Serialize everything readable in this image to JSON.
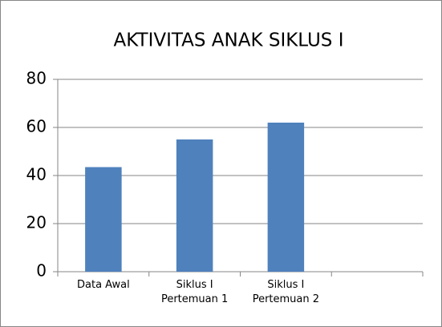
{
  "chart_data": {
    "type": "bar",
    "title": "AKTIVITAS ANAK SIKLUS I",
    "categories": [
      "Data Awal",
      "Siklus I Pertemuan 1",
      "Siklus I Pertemuan 2",
      null
    ],
    "values": [
      43.5,
      55,
      62,
      null
    ],
    "color": "#4f81bd",
    "ylim": [
      0,
      80
    ],
    "yticks": [
      0,
      20,
      40,
      60,
      80
    ],
    "grid": true
  }
}
